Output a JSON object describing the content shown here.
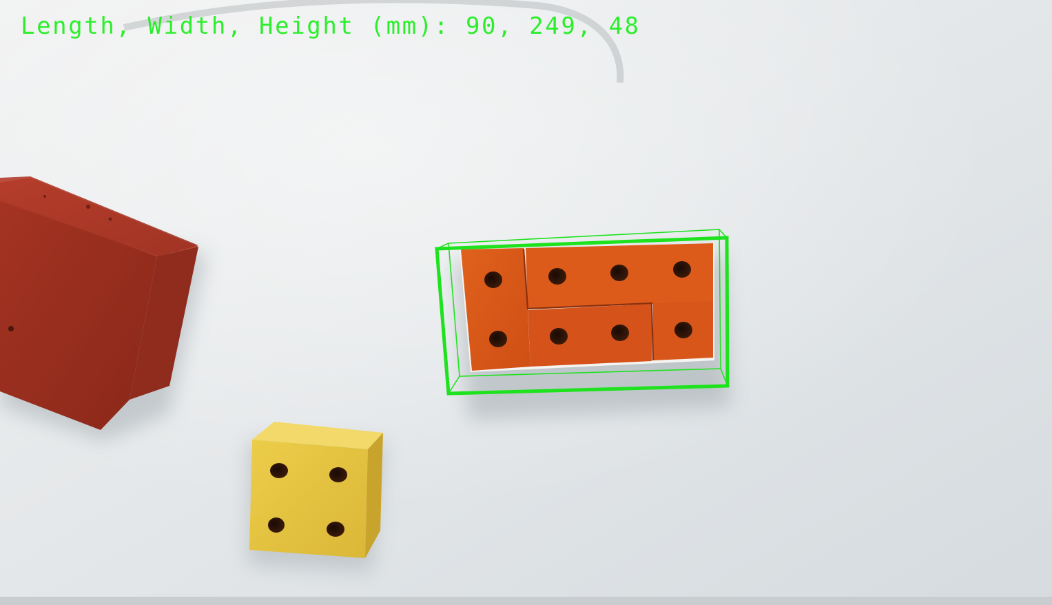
{
  "overlay": {
    "measurement_text": "Length, Width, Height (mm): 90, 249, 48",
    "color": "#22ee22"
  },
  "scene": {
    "background_color": "#e6e9eb",
    "objects": [
      {
        "name": "red-block",
        "color": "#a83424"
      },
      {
        "name": "orange-puzzle-block",
        "color": "#d9571a",
        "hole_count": 8
      },
      {
        "name": "yellow-block",
        "color": "#e2c23f",
        "hole_count": 4
      }
    ],
    "bounding_box": {
      "color": "#1fe21f",
      "style": "3d-wireframe"
    }
  }
}
